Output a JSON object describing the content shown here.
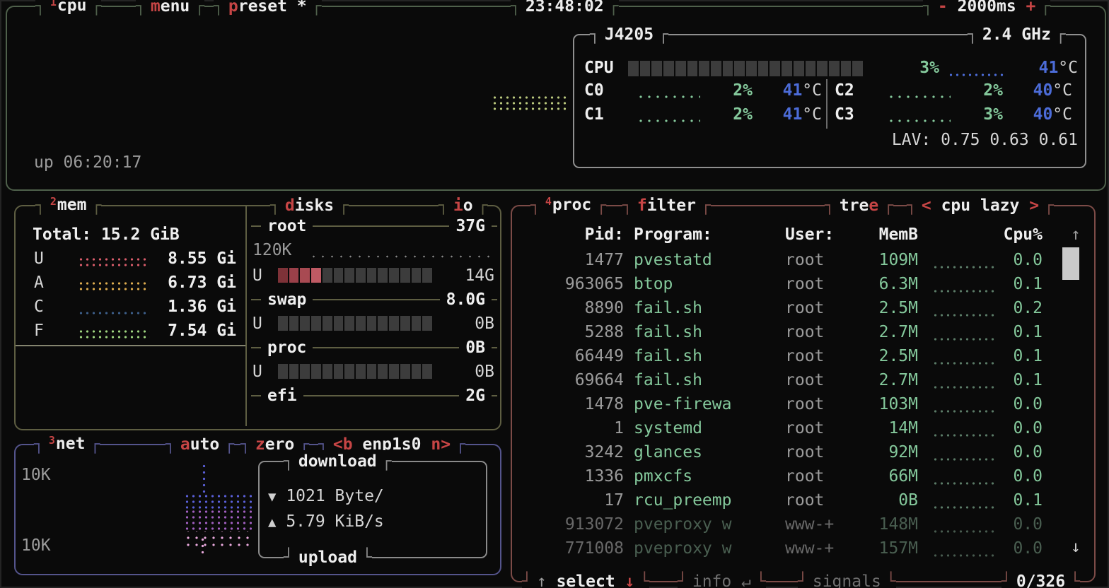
{
  "colors": {
    "accent_red": "#c64545",
    "value_green": "#84c89b",
    "temp_blue": "#4c6cd8",
    "cpu_graph_dots": "#b9c77d",
    "mem_used_dots": "#d85c6a",
    "mem_available_dots": "#dcab4e",
    "mem_cached_dots": "#3d5f8a",
    "mem_free_dots": "#9ed47f",
    "net_download_dots": "#5a5fd8",
    "net_mid_dots": "#a05fc0",
    "net_upload_dots": "#e9a9dd",
    "border_cpu": "#4f604b",
    "border_mem": "#5e5e42",
    "border_net": "#54548c",
    "border_proc": "#7c4b47",
    "disk_used_segments": [
      "#7e3238",
      "#9a4049",
      "#a84a52",
      "#bf5a64"
    ]
  },
  "cpu": {
    "num": "1",
    "title": "cpu",
    "menu": {
      "key": "m",
      "rest": "enu"
    },
    "preset": {
      "key": "p",
      "rest": "reset *"
    },
    "clock": "23:48:02",
    "interval": {
      "minus": "-",
      "value": "2000ms",
      "plus": "+"
    },
    "uptime": "up 06:20:17",
    "box": {
      "model": "J4205",
      "freq": "2.4 GHz",
      "total": {
        "label": "CPU",
        "pct": "3%",
        "temp": "41",
        "unit": "°C"
      },
      "cores": [
        {
          "name": "C0",
          "pct": "2%",
          "temp": "41",
          "unit": "°C"
        },
        {
          "name": "C1",
          "pct": "2%",
          "temp": "41",
          "unit": "°C"
        },
        {
          "name": "C2",
          "pct": "2%",
          "temp": "40",
          "unit": "°C"
        },
        {
          "name": "C3",
          "pct": "3%",
          "temp": "40",
          "unit": "°C"
        }
      ],
      "lav": {
        "label": "LAV:",
        "values": "0.75 0.63 0.61"
      }
    }
  },
  "mem": {
    "num": "2",
    "title": "mem",
    "total_label": "Total:",
    "total_value": "15.2 GiB",
    "rows": [
      {
        "key": "U",
        "value": "8.55 Gi"
      },
      {
        "key": "A",
        "value": "6.73 Gi"
      },
      {
        "key": "C",
        "value": "1.36 Gi"
      },
      {
        "key": "F",
        "value": "7.54 Gi"
      }
    ]
  },
  "disks": {
    "title": {
      "key": "d",
      "rest": "isks"
    },
    "io": {
      "key": "i",
      "rest": "o"
    },
    "root": {
      "name": "root",
      "size": "37G",
      "io_value": "120K",
      "used_label": "U",
      "used": "14G"
    },
    "swap": {
      "name": "swap",
      "size": "8.0G",
      "used_label": "U",
      "used": "0B"
    },
    "proc": {
      "name": "proc",
      "size": "0B",
      "used_label": "U",
      "used": "0B"
    },
    "efi": {
      "name": "efi",
      "size": "2G"
    }
  },
  "net": {
    "num": "3",
    "title": "net",
    "auto": {
      "key": "a",
      "rest": "uto"
    },
    "zero": {
      "key": "z",
      "rest": "ero"
    },
    "iface": {
      "prev": "<b",
      "name": "enp1s0",
      "next": "n>"
    },
    "scale_top": "10K",
    "scale_bottom": "10K",
    "download_label": "download",
    "upload_label": "upload",
    "down_icon": "▼",
    "down_value": "1021 Byte/",
    "up_icon": "▲",
    "up_value": "5.79 KiB/s"
  },
  "proc": {
    "num": "4",
    "title": "proc",
    "filter": {
      "key": "f",
      "rest": "ilter"
    },
    "tree": {
      "head": "tre",
      "key": "e"
    },
    "sort": {
      "left": "<",
      "label": "cpu lazy",
      "right": ">"
    },
    "headers": {
      "pid": "Pid:",
      "program": "Program:",
      "user": "User:",
      "mem": "MemB",
      "cpu": "Cpu%"
    },
    "scroll_up": "↑",
    "scroll_down": "↓",
    "rows": [
      {
        "pid": "1477",
        "program": "pvestatd",
        "user": "root",
        "mem": "109M",
        "cpu": "0.0",
        "dim": false
      },
      {
        "pid": "963065",
        "program": "btop",
        "user": "root",
        "mem": "6.3M",
        "cpu": "0.1",
        "dim": false
      },
      {
        "pid": "8890",
        "program": "fail.sh",
        "user": "root",
        "mem": "2.5M",
        "cpu": "0.2",
        "dim": false
      },
      {
        "pid": "5288",
        "program": "fail.sh",
        "user": "root",
        "mem": "2.7M",
        "cpu": "0.1",
        "dim": false
      },
      {
        "pid": "66449",
        "program": "fail.sh",
        "user": "root",
        "mem": "2.5M",
        "cpu": "0.1",
        "dim": false
      },
      {
        "pid": "69664",
        "program": "fail.sh",
        "user": "root",
        "mem": "2.7M",
        "cpu": "0.1",
        "dim": false
      },
      {
        "pid": "1478",
        "program": "pve-firewa",
        "user": "root",
        "mem": "103M",
        "cpu": "0.0",
        "dim": false
      },
      {
        "pid": "1",
        "program": "systemd",
        "user": "root",
        "mem": "14M",
        "cpu": "0.0",
        "dim": false
      },
      {
        "pid": "3242",
        "program": "glances",
        "user": "root",
        "mem": "92M",
        "cpu": "0.0",
        "dim": false
      },
      {
        "pid": "1336",
        "program": "pmxcfs",
        "user": "root",
        "mem": "66M",
        "cpu": "0.0",
        "dim": false
      },
      {
        "pid": "17",
        "program": "rcu_preemp",
        "user": "root",
        "mem": "0B",
        "cpu": "0.1",
        "dim": false
      },
      {
        "pid": "913072",
        "program": "pveproxy w",
        "user": "www-+",
        "mem": "148M",
        "cpu": "0.0",
        "dim": true
      },
      {
        "pid": "771008",
        "program": "pveproxy w",
        "user": "www-+",
        "mem": "157M",
        "cpu": "0.0",
        "dim": true
      }
    ],
    "footer": {
      "up": "↑",
      "select": "select",
      "down": "↓",
      "info": "info",
      "enter": "↵",
      "signals": "signals",
      "count": "0/326"
    }
  }
}
